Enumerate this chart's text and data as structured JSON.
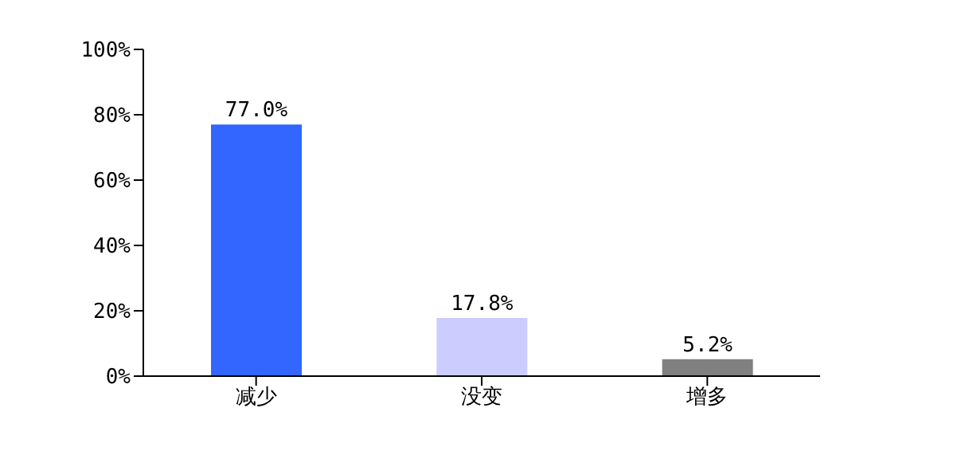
{
  "chart_data": {
    "type": "bar",
    "categories": [
      "减少",
      "没变",
      "增多"
    ],
    "values": [
      77.0,
      17.8,
      5.2
    ],
    "colors": [
      "#3366ff",
      "#ccccff",
      "#808080"
    ],
    "value_labels": [
      "77.0%",
      "17.8%",
      "5.2%"
    ],
    "ylim": [
      0,
      100
    ],
    "yticks": [
      {
        "value": 0,
        "label": "0%"
      },
      {
        "value": 20,
        "label": "20%"
      },
      {
        "value": 40,
        "label": "40%"
      },
      {
        "value": 60,
        "label": "60%"
      },
      {
        "value": 80,
        "label": "80%"
      },
      {
        "value": 100,
        "label": "100%"
      }
    ],
    "grid": false,
    "legend": false
  }
}
